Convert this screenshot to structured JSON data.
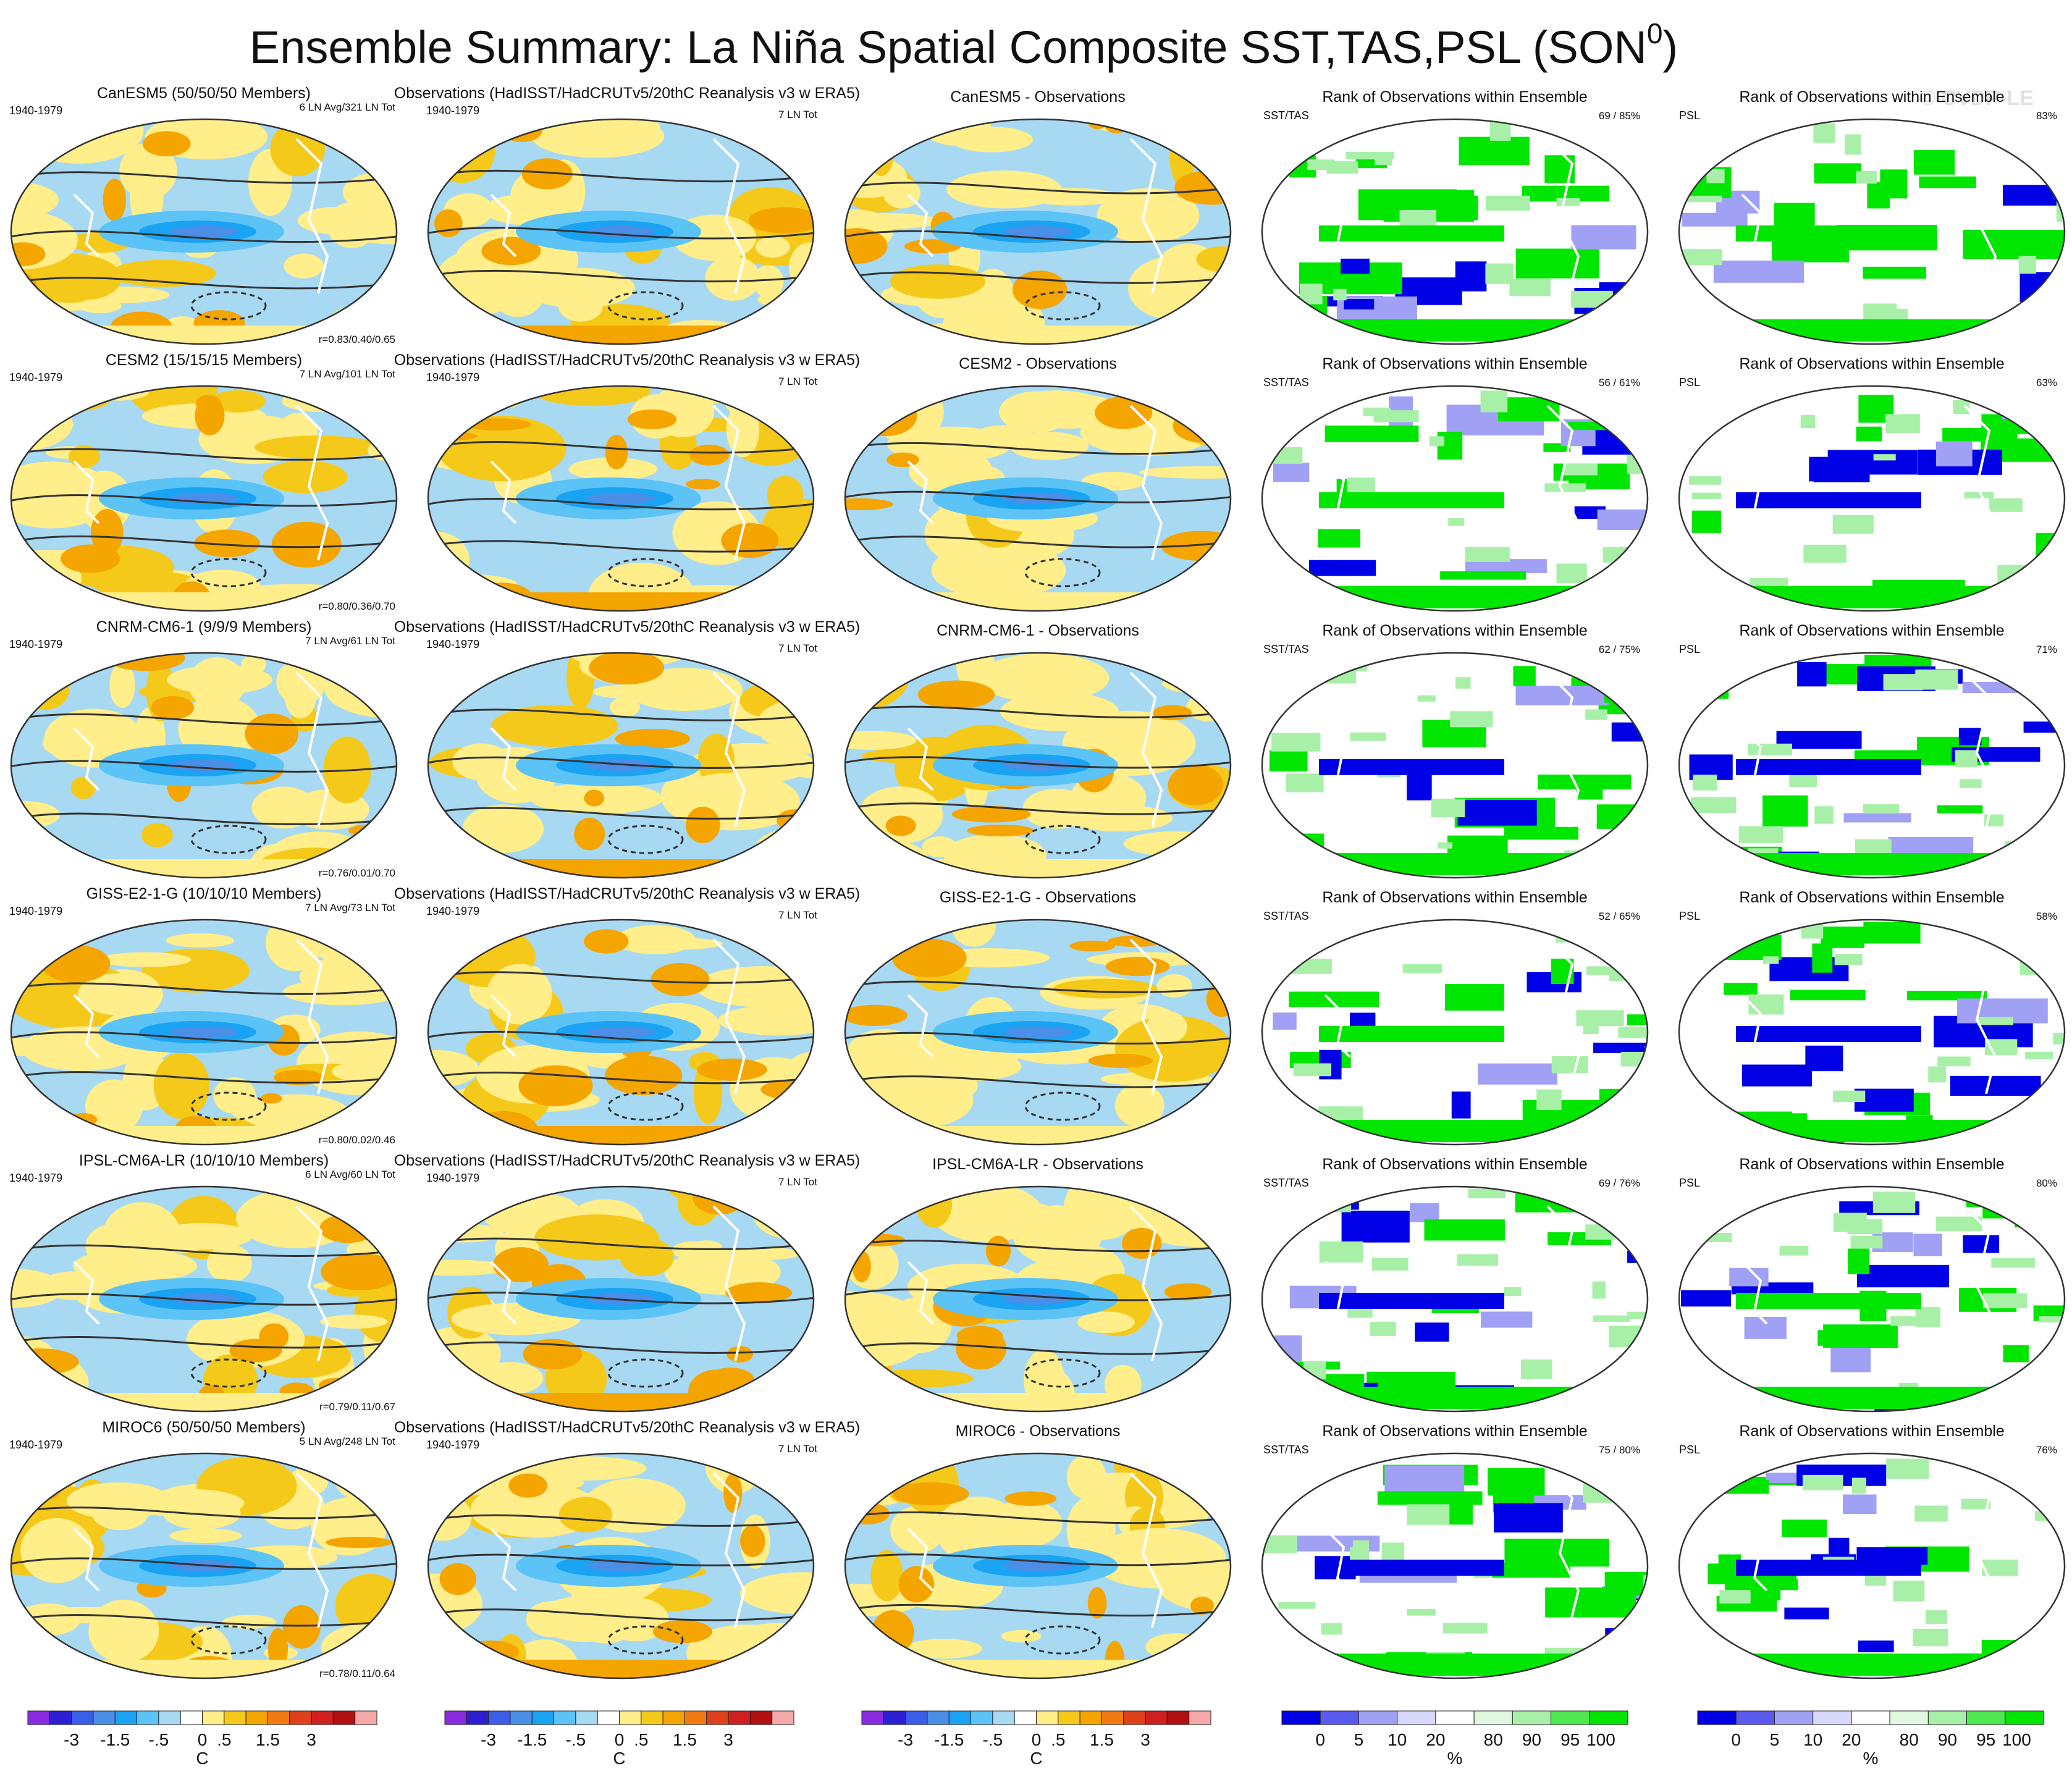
{
  "title": "Ensemble Summary: La Niña Spatial Composite SST,TAS,PSL (SON",
  "title_sup": "0",
  "title_close": ")",
  "watermark": "© CVDP-LE",
  "obs_title": "Observations (HadISST/HadCRUTv5/20thC Reanalysis v3 w ERA5)",
  "rank_title": "Rank of Observations within Ensemble",
  "period": "1940-1979",
  "obs_count": "7 LN Tot",
  "rank_var_sst": "SST/TAS",
  "rank_var_psl": "PSL",
  "rows": [
    {
      "model": "CanESM5 (50/50/50 Members)",
      "model_color": "#1f6f8b",
      "counts": "6 LN Avg/321 LN Tot",
      "corr": "r=0.83/0.40/0.65",
      "diff": "CanESM5 - Observations",
      "sst_pct": "69 /  85%",
      "psl_pct": "83%"
    },
    {
      "model": "CESM2 (15/15/15 Members)",
      "model_color": "#4a9a6a",
      "counts": "7 LN Avg/101 LN Tot",
      "corr": "r=0.80/0.36/0.70",
      "diff": "CESM2 - Observations",
      "sst_pct": "56 /  61%",
      "psl_pct": "63%"
    },
    {
      "model": "CNRM-CM6-1 (9/9/9 Members)",
      "model_color": "#888888",
      "counts": "7 LN Avg/61 LN Tot",
      "corr": "r=0.76/0.01/0.70",
      "diff": "CNRM-CM6-1 - Observations",
      "sst_pct": "62 /  75%",
      "psl_pct": "71%"
    },
    {
      "model": "GISS-E2-1-G (10/10/10 Members)",
      "model_color": "#a0522d",
      "counts": "7 LN Avg/73 LN Tot",
      "corr": "r=0.80/0.02/0.46",
      "diff": "GISS-E2-1-G - Observations",
      "sst_pct": "52 /  65%",
      "psl_pct": "58%"
    },
    {
      "model": "IPSL-CM6A-LR (10/10/10 Members)",
      "model_color": "#8e6bbf",
      "counts": "6 LN Avg/60 LN Tot",
      "corr": "r=0.79/0.11/0.67",
      "diff": "IPSL-CM6A-LR - Observations",
      "sst_pct": "69 /  76%",
      "psl_pct": "80%"
    },
    {
      "model": "MIROC6 (50/50/50 Members)",
      "model_color": "#c9a76e",
      "counts": "5 LN Avg/248 LN Tot",
      "corr": "r=0.78/0.11/0.64",
      "diff": "MIROC6 - Observations",
      "sst_pct": "75 /  80%",
      "psl_pct": "76%"
    }
  ],
  "colors": {
    "temp": [
      "#8a2be2",
      "#2b1fd1",
      "#3a5ee8",
      "#4a8ee8",
      "#1aa3f2",
      "#5cc3f7",
      "#a8d9f3",
      "#ffffff",
      "#ffee8a",
      "#f5c91a",
      "#f5a500",
      "#f07a10",
      "#e0401a",
      "#cf1f1f",
      "#b01010",
      "#f4a8a8"
    ],
    "rank": [
      "#0000e6",
      "#5a5aee",
      "#a0a0f5",
      "#d8d8fb",
      "#ffffff",
      "#e0f8e0",
      "#a8f0a8",
      "#50e850",
      "#00e600"
    ],
    "ocean_base": "#a8d9f3",
    "rank_base": "#ffffff"
  },
  "chart_data": {
    "type": "heatmap",
    "panels_per_row": 5,
    "columns": [
      "Model ensemble mean composite",
      "Observations composite",
      "Model - Observations difference",
      "Rank SST/TAS",
      "Rank PSL"
    ],
    "temp_colorbar": {
      "unit": "C",
      "tick_labels": [
        "-3",
        "-1.5",
        "-.5",
        "0",
        ".5",
        "1.5",
        "3"
      ],
      "boundaries": [
        -3.5,
        -3,
        -2.5,
        -2,
        -1.5,
        -1,
        -0.5,
        -0.25,
        0.25,
        0.5,
        1,
        1.5,
        2,
        2.5,
        3,
        3.5
      ]
    },
    "rank_colorbar": {
      "unit": "%",
      "tick_labels": [
        "0",
        "5",
        "10",
        "20",
        "80",
        "90",
        "95",
        "100"
      ]
    }
  }
}
